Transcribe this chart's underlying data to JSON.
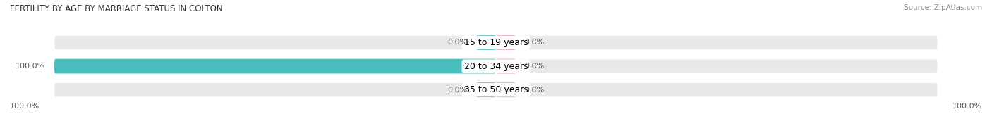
{
  "title": "Female Fertility by Age by Marriage Status in Colton",
  "title_display": "FERTILITY BY AGE BY MARRIAGE STATUS IN COLTON",
  "source": "Source: ZipAtlas.com",
  "categories": [
    "15 to 19 years",
    "20 to 34 years",
    "35 to 50 years"
  ],
  "married_values": [
    0.0,
    100.0,
    0.0
  ],
  "unmarried_values": [
    0.0,
    0.0,
    0.0
  ],
  "married_color": "#4BBFBF",
  "unmarried_color": "#F4A0B4",
  "bar_bg_color": "#E8E8E8",
  "title_fontsize": 8.5,
  "source_fontsize": 7.5,
  "label_fontsize": 8.0,
  "cat_fontsize": 9.0,
  "axis_label_left": "100.0%",
  "axis_label_right": "100.0%"
}
